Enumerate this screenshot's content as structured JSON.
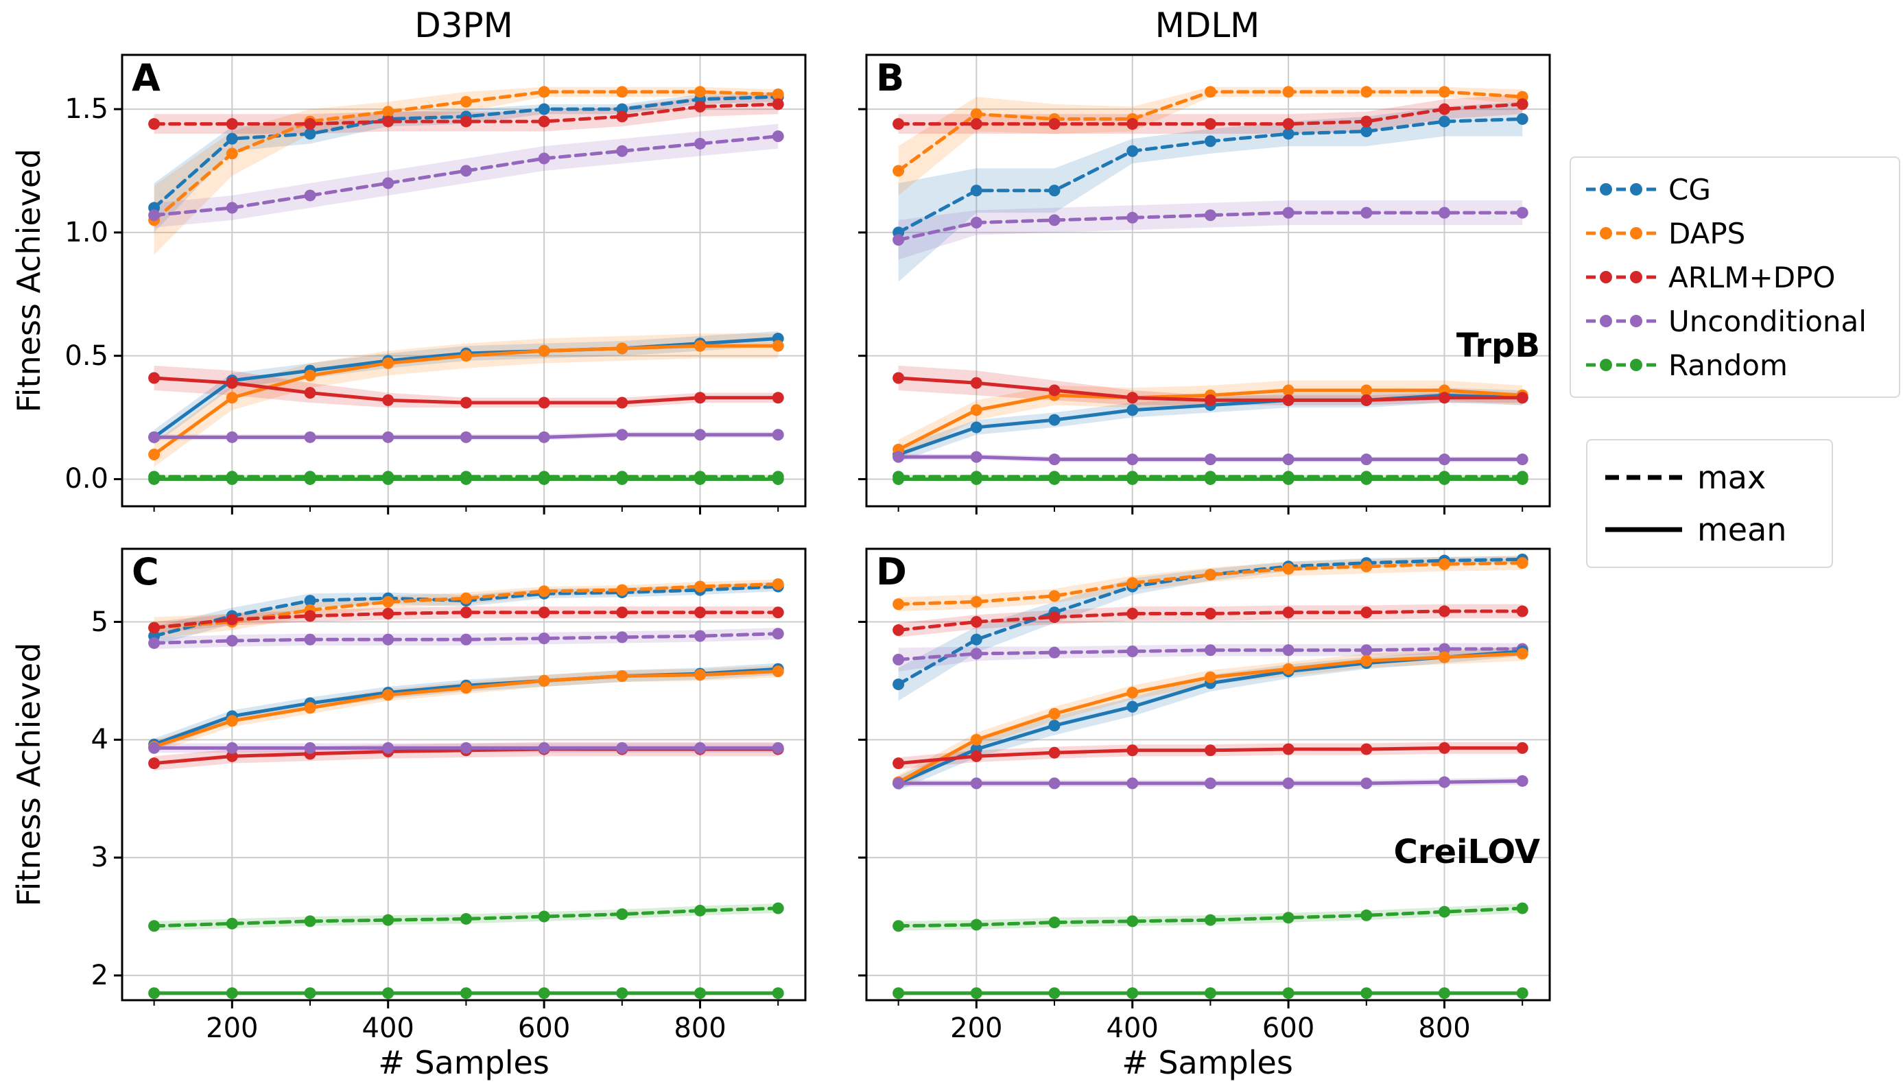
{
  "figure": {
    "col_titles": [
      "D3PM",
      "MDLM"
    ],
    "row_labels": [
      "TrpB",
      "CreiLOV"
    ],
    "xlabel": "# Samples",
    "ylabel": "Fitness Achieved",
    "legend": {
      "position": "right",
      "methods": [
        {
          "label": "CG",
          "color": "#1f77b4"
        },
        {
          "label": "DAPS",
          "color": "#ff7f0e"
        },
        {
          "label": "ARLM+DPO",
          "color": "#d62728"
        },
        {
          "label": "Unconditional",
          "color": "#9467bd"
        },
        {
          "label": "Random",
          "color": "#2ca02c"
        }
      ],
      "styles": [
        {
          "label": "max",
          "dash": true
        },
        {
          "label": "mean",
          "dash": false
        }
      ]
    }
  },
  "chart_data": [
    {
      "type": "line",
      "panel": "A",
      "col_title": "D3PM",
      "row_label": "",
      "x": [
        100,
        200,
        300,
        400,
        500,
        600,
        700,
        800,
        900
      ],
      "xlim": [
        59,
        935
      ],
      "ylim": [
        -0.11,
        1.72
      ],
      "xticks": [
        200,
        400,
        600,
        800
      ],
      "xtick_labels": [
        "200",
        "400",
        "600",
        "800"
      ],
      "x_minor": [
        100,
        300,
        500,
        700,
        900
      ],
      "yticks": [
        0.0,
        0.5,
        1.0,
        1.5
      ],
      "ytick_labels": [
        "0.0",
        "0.5",
        "1.0",
        "1.5"
      ],
      "grid": true,
      "series": [
        {
          "name": "CG",
          "style": "max",
          "values": [
            1.1,
            1.38,
            1.4,
            1.46,
            1.47,
            1.5,
            1.5,
            1.54,
            1.55
          ],
          "band": [
            0.1,
            0.05,
            0.04,
            0.03,
            0.03,
            0.02,
            0.02,
            0.02,
            0.02
          ]
        },
        {
          "name": "DAPS",
          "style": "max",
          "values": [
            1.05,
            1.32,
            1.45,
            1.49,
            1.53,
            1.57,
            1.57,
            1.57,
            1.56
          ],
          "band": [
            0.14,
            0.09,
            0.05,
            0.04,
            0.04,
            0.02,
            0.02,
            0.02,
            0.02
          ]
        },
        {
          "name": "ARLM+DPO",
          "style": "max",
          "values": [
            1.44,
            1.44,
            1.44,
            1.45,
            1.45,
            1.45,
            1.47,
            1.51,
            1.52
          ],
          "band": 0.04
        },
        {
          "name": "Unconditional",
          "style": "max",
          "values": [
            1.07,
            1.1,
            1.15,
            1.2,
            1.25,
            1.3,
            1.33,
            1.36,
            1.39
          ],
          "band": 0.05
        },
        {
          "name": "Random",
          "style": "max",
          "values": [
            0.01,
            0.01,
            0.01,
            0.01,
            0.01,
            0.01,
            0.01,
            0.01,
            0.01
          ],
          "band": 0.008
        },
        {
          "name": "CG",
          "style": "mean",
          "values": [
            0.17,
            0.4,
            0.44,
            0.48,
            0.51,
            0.52,
            0.53,
            0.55,
            0.57
          ],
          "band": 0.03
        },
        {
          "name": "DAPS",
          "style": "mean",
          "values": [
            0.1,
            0.33,
            0.42,
            0.47,
            0.5,
            0.52,
            0.53,
            0.54,
            0.54
          ],
          "band": 0.05
        },
        {
          "name": "ARLM+DPO",
          "style": "mean",
          "values": [
            0.41,
            0.39,
            0.35,
            0.32,
            0.31,
            0.31,
            0.31,
            0.33,
            0.33
          ],
          "band": [
            0.05,
            0.05,
            0.04,
            0.03,
            0.02,
            0.02,
            0.02,
            0.02,
            0.02
          ]
        },
        {
          "name": "Unconditional",
          "style": "mean",
          "values": [
            0.17,
            0.17,
            0.17,
            0.17,
            0.17,
            0.17,
            0.18,
            0.18,
            0.18
          ],
          "band": 0.012
        },
        {
          "name": "Random",
          "style": "mean",
          "values": [
            0,
            0,
            0,
            0,
            0,
            0,
            0,
            0,
            0
          ],
          "band": 0.004
        }
      ]
    },
    {
      "type": "line",
      "panel": "B",
      "col_title": "MDLM",
      "row_label": "TrpB",
      "x": [
        100,
        200,
        300,
        400,
        500,
        600,
        700,
        800,
        900
      ],
      "xlim": [
        59,
        935
      ],
      "ylim": [
        -0.11,
        1.72
      ],
      "xticks": [
        200,
        400,
        600,
        800
      ],
      "xtick_labels": [
        "200",
        "400",
        "600",
        "800"
      ],
      "x_minor": [
        100,
        300,
        500,
        700,
        900
      ],
      "yticks": [
        0.0,
        0.5,
        1.0,
        1.5
      ],
      "ytick_labels": [
        "0.0",
        "0.5",
        "1.0",
        "1.5"
      ],
      "grid": true,
      "series": [
        {
          "name": "CG",
          "style": "max",
          "values": [
            1.0,
            1.17,
            1.17,
            1.33,
            1.37,
            1.4,
            1.41,
            1.45,
            1.46
          ],
          "band": [
            0.2,
            0.09,
            0.09,
            0.05,
            0.05,
            0.05,
            0.06,
            0.06,
            0.07
          ]
        },
        {
          "name": "DAPS",
          "style": "max",
          "values": [
            1.25,
            1.48,
            1.46,
            1.46,
            1.57,
            1.57,
            1.57,
            1.57,
            1.55
          ],
          "band": [
            0.1,
            0.07,
            0.06,
            0.05,
            0.02,
            0.02,
            0.02,
            0.02,
            0.03
          ]
        },
        {
          "name": "ARLM+DPO",
          "style": "max",
          "values": [
            1.44,
            1.44,
            1.44,
            1.44,
            1.44,
            1.44,
            1.45,
            1.5,
            1.52
          ],
          "band": 0.04
        },
        {
          "name": "Unconditional",
          "style": "max",
          "values": [
            0.97,
            1.04,
            1.05,
            1.06,
            1.07,
            1.08,
            1.08,
            1.08,
            1.08
          ],
          "band": [
            0.08,
            0.05,
            0.05,
            0.05,
            0.05,
            0.05,
            0.05,
            0.05,
            0.05
          ]
        },
        {
          "name": "Random",
          "style": "max",
          "values": [
            0.01,
            0.01,
            0.01,
            0.01,
            0.01,
            0.01,
            0.01,
            0.01,
            0.01
          ],
          "band": 0.008
        },
        {
          "name": "CG",
          "style": "mean",
          "values": [
            0.1,
            0.21,
            0.24,
            0.28,
            0.3,
            0.32,
            0.32,
            0.34,
            0.33
          ],
          "band": 0.03
        },
        {
          "name": "DAPS",
          "style": "mean",
          "values": [
            0.12,
            0.28,
            0.34,
            0.33,
            0.34,
            0.36,
            0.36,
            0.36,
            0.34
          ],
          "band": 0.04
        },
        {
          "name": "ARLM+DPO",
          "style": "mean",
          "values": [
            0.41,
            0.39,
            0.36,
            0.33,
            0.32,
            0.32,
            0.32,
            0.33,
            0.33
          ],
          "band": [
            0.05,
            0.05,
            0.04,
            0.03,
            0.02,
            0.02,
            0.02,
            0.02,
            0.02
          ]
        },
        {
          "name": "Unconditional",
          "style": "mean",
          "values": [
            0.09,
            0.09,
            0.08,
            0.08,
            0.08,
            0.08,
            0.08,
            0.08,
            0.08
          ],
          "band": 0.012
        },
        {
          "name": "Random",
          "style": "mean",
          "values": [
            0,
            0,
            0,
            0,
            0,
            0,
            0,
            0,
            0
          ],
          "band": 0.004
        }
      ]
    },
    {
      "type": "line",
      "panel": "C",
      "col_title": "D3PM",
      "row_label": "",
      "x": [
        100,
        200,
        300,
        400,
        500,
        600,
        700,
        800,
        900
      ],
      "xlim": [
        59,
        935
      ],
      "ylim": [
        1.79,
        5.62
      ],
      "xticks": [
        200,
        400,
        600,
        800
      ],
      "xtick_labels": [
        "200",
        "400",
        "600",
        "800"
      ],
      "x_minor": [
        100,
        300,
        500,
        700,
        900
      ],
      "yticks": [
        2,
        3,
        4,
        5
      ],
      "ytick_labels": [
        "2",
        "3",
        "4",
        "5"
      ],
      "grid": true,
      "series": [
        {
          "name": "CG",
          "style": "max",
          "values": [
            4.88,
            5.05,
            5.18,
            5.2,
            5.18,
            5.24,
            5.25,
            5.27,
            5.3
          ],
          "band": [
            0.08,
            0.07,
            0.06,
            0.05,
            0.05,
            0.04,
            0.04,
            0.04,
            0.04
          ]
        },
        {
          "name": "DAPS",
          "style": "max",
          "values": [
            4.95,
            5.0,
            5.1,
            5.17,
            5.2,
            5.26,
            5.27,
            5.3,
            5.32
          ],
          "band": [
            0.09,
            0.07,
            0.06,
            0.05,
            0.05,
            0.04,
            0.04,
            0.04,
            0.04
          ]
        },
        {
          "name": "ARLM+DPO",
          "style": "max",
          "values": [
            4.95,
            5.02,
            5.05,
            5.07,
            5.08,
            5.08,
            5.08,
            5.08,
            5.08
          ],
          "band": 0.05
        },
        {
          "name": "Unconditional",
          "style": "max",
          "values": [
            4.82,
            4.84,
            4.85,
            4.85,
            4.85,
            4.86,
            4.87,
            4.88,
            4.9
          ],
          "band": 0.05
        },
        {
          "name": "Random",
          "style": "max",
          "values": [
            2.42,
            2.44,
            2.46,
            2.47,
            2.48,
            2.5,
            2.52,
            2.55,
            2.57
          ],
          "band": 0.04
        },
        {
          "name": "CG",
          "style": "mean",
          "values": [
            3.96,
            4.2,
            4.31,
            4.4,
            4.46,
            4.5,
            4.54,
            4.56,
            4.6
          ],
          "band": 0.05
        },
        {
          "name": "DAPS",
          "style": "mean",
          "values": [
            3.94,
            4.16,
            4.27,
            4.38,
            4.44,
            4.5,
            4.54,
            4.55,
            4.58
          ],
          "band": 0.05
        },
        {
          "name": "ARLM+DPO",
          "style": "mean",
          "values": [
            3.8,
            3.86,
            3.88,
            3.9,
            3.91,
            3.92,
            3.92,
            3.92,
            3.92
          ],
          "band": 0.06
        },
        {
          "name": "Unconditional",
          "style": "mean",
          "values": [
            3.93,
            3.93,
            3.93,
            3.93,
            3.93,
            3.93,
            3.93,
            3.93,
            3.93
          ],
          "band": 0.04
        },
        {
          "name": "Random",
          "style": "mean",
          "values": [
            1.85,
            1.85,
            1.85,
            1.85,
            1.85,
            1.85,
            1.85,
            1.85,
            1.85
          ],
          "band": 0.02
        }
      ]
    },
    {
      "type": "line",
      "panel": "D",
      "col_title": "MDLM",
      "row_label": "CreiLOV",
      "x": [
        100,
        200,
        300,
        400,
        500,
        600,
        700,
        800,
        900
      ],
      "xlim": [
        59,
        935
      ],
      "ylim": [
        1.79,
        5.62
      ],
      "xticks": [
        200,
        400,
        600,
        800
      ],
      "xtick_labels": [
        "200",
        "400",
        "600",
        "800"
      ],
      "x_minor": [
        100,
        300,
        500,
        700,
        900
      ],
      "yticks": [
        2,
        3,
        4,
        5
      ],
      "ytick_labels": [
        "2",
        "3",
        "4",
        "5"
      ],
      "grid": true,
      "series": [
        {
          "name": "CG",
          "style": "max",
          "values": [
            4.47,
            4.85,
            5.08,
            5.3,
            5.4,
            5.47,
            5.5,
            5.52,
            5.53
          ],
          "band": [
            0.14,
            0.11,
            0.09,
            0.07,
            0.05,
            0.04,
            0.04,
            0.03,
            0.03
          ]
        },
        {
          "name": "DAPS",
          "style": "max",
          "values": [
            5.15,
            5.17,
            5.22,
            5.33,
            5.4,
            5.45,
            5.47,
            5.49,
            5.5
          ],
          "band": 0.06
        },
        {
          "name": "ARLM+DPO",
          "style": "max",
          "values": [
            4.93,
            5.0,
            5.04,
            5.07,
            5.07,
            5.08,
            5.08,
            5.09,
            5.09
          ],
          "band": 0.06
        },
        {
          "name": "Unconditional",
          "style": "max",
          "values": [
            4.68,
            4.73,
            4.74,
            4.75,
            4.76,
            4.76,
            4.76,
            4.77,
            4.77
          ],
          "band": [
            0.1,
            0.06,
            0.05,
            0.05,
            0.05,
            0.05,
            0.05,
            0.05,
            0.05
          ]
        },
        {
          "name": "Random",
          "style": "max",
          "values": [
            2.42,
            2.43,
            2.45,
            2.46,
            2.47,
            2.49,
            2.51,
            2.54,
            2.57
          ],
          "band": 0.04
        },
        {
          "name": "CG",
          "style": "mean",
          "values": [
            3.63,
            3.92,
            4.12,
            4.28,
            4.48,
            4.58,
            4.65,
            4.7,
            4.75
          ],
          "band": [
            0.06,
            0.07,
            0.08,
            0.08,
            0.07,
            0.06,
            0.05,
            0.05,
            0.04
          ]
        },
        {
          "name": "DAPS",
          "style": "mean",
          "values": [
            3.64,
            4.0,
            4.22,
            4.4,
            4.53,
            4.6,
            4.67,
            4.7,
            4.73
          ],
          "band": 0.06
        },
        {
          "name": "ARLM+DPO",
          "style": "mean",
          "values": [
            3.8,
            3.86,
            3.89,
            3.91,
            3.91,
            3.92,
            3.92,
            3.93,
            3.93
          ],
          "band": 0.05
        },
        {
          "name": "Unconditional",
          "style": "mean",
          "values": [
            3.63,
            3.63,
            3.63,
            3.63,
            3.63,
            3.63,
            3.63,
            3.64,
            3.65
          ],
          "band": 0.03
        },
        {
          "name": "Random",
          "style": "mean",
          "values": [
            1.85,
            1.85,
            1.85,
            1.85,
            1.85,
            1.85,
            1.85,
            1.85,
            1.85
          ],
          "band": 0.02
        }
      ]
    }
  ]
}
